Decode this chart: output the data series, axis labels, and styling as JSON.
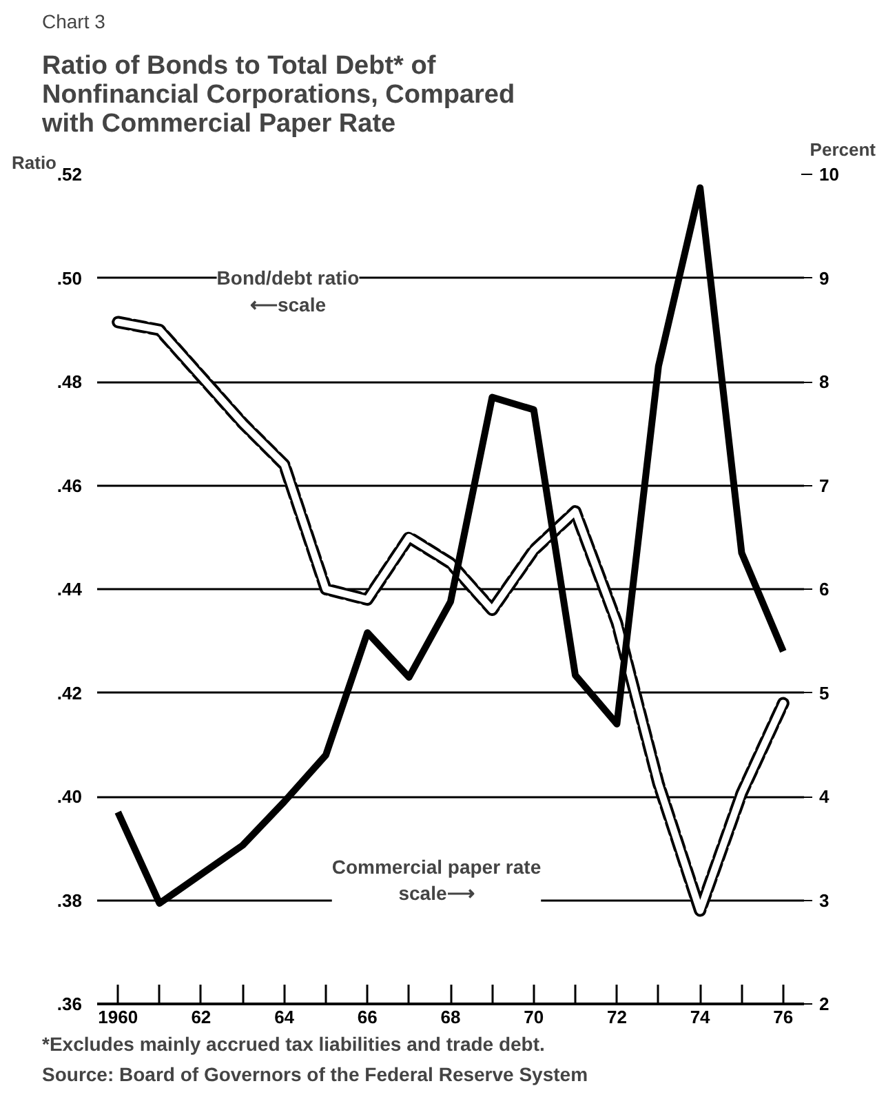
{
  "chart_data": {
    "type": "line",
    "subtitle": "Chart 3",
    "title": "Ratio of Bonds to Total Debt* of\nNonfinancial Corporations, Compared\nwith Commercial Paper Rate",
    "ylabel": "Ratio",
    "y2label": "Percent",
    "x": [
      1960,
      1961,
      1962,
      1963,
      1964,
      1965,
      1966,
      1967,
      1968,
      1969,
      1970,
      1971,
      1972,
      1973,
      1974,
      1975,
      1976
    ],
    "series": [
      {
        "color": "#000000",
        "line_style": "dashed",
        "values": [
          0.4915,
          0.49,
          0.481,
          0.472,
          0.464,
          0.44,
          0.438,
          0.45,
          0.445,
          0.436,
          0.4475,
          0.455,
          0.4335,
          0.4025,
          0.378,
          0.4006,
          0.418
        ]
      },
      {
        "color": "#000000",
        "line_style": "solid",
        "axis": "y2",
        "values": [
          3.85,
          2.97,
          3.25,
          3.53,
          3.95,
          4.4,
          5.58,
          5.15,
          5.88,
          7.85,
          7.73,
          5.17,
          4.7,
          8.15,
          9.87,
          6.35,
          5.4
        ]
      }
    ],
    "xlim": [
      1959.5,
      1976.5
    ],
    "xticks": [
      1960,
      {
        "value": 1961,
        "label": null
      },
      {
        "value": 1962,
        "label": "62"
      },
      {
        "value": 1963,
        "label": null
      },
      {
        "value": 1964,
        "label": "64"
      },
      {
        "value": 1965,
        "label": null
      },
      {
        "value": 1966,
        "label": "66"
      },
      {
        "value": 1967,
        "label": null
      },
      {
        "value": 1968,
        "label": "68"
      },
      {
        "value": 1969,
        "label": null
      },
      {
        "value": 1970,
        "label": "70"
      },
      {
        "value": 1971,
        "label": null
      },
      {
        "value": 1972,
        "label": "72"
      },
      {
        "value": 1973,
        "label": null
      },
      {
        "value": 1974,
        "label": "74"
      },
      {
        "value": 1975,
        "label": null
      },
      {
        "value": 1976,
        "label": "76"
      }
    ],
    "ylim": [
      0.36,
      0.52
    ],
    "yticks": [
      {
        "value": 0.36,
        "label": ".36"
      },
      {
        "value": 0.38,
        "label": ".38"
      },
      {
        "value": 0.4,
        "label": ".40"
      },
      {
        "value": 0.42,
        "label": ".42"
      },
      {
        "value": 0.44,
        "label": ".44"
      },
      {
        "value": 0.46,
        "label": ".46"
      },
      {
        "value": 0.48,
        "label": ".48"
      },
      {
        "value": 0.5,
        "label": ".50"
      },
      {
        "value": 0.52,
        "label": ".52"
      }
    ],
    "y2lim": [
      2,
      10
    ],
    "y2ticks": [
      2,
      3,
      4,
      5,
      6,
      7,
      8,
      9,
      10
    ],
    "grid": "y",
    "annotations": [
      "Bond/debt ratio\n⟵scale",
      "Commercial paper rate\nscale⟶",
      "*Excludes mainly accrued tax liabilities and trade debt.",
      "Source:  Board of Governors of the Federal Reserve System"
    ]
  }
}
